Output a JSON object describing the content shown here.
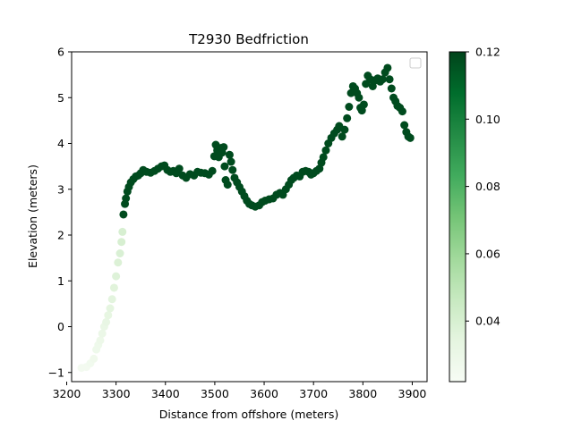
{
  "chart_data": {
    "type": "scatter",
    "title": "T2930 Bedfriction",
    "xlabel": "Distance from offshore (meters)",
    "ylabel": "Elevation (meters)",
    "xlim": [
      3210,
      3930
    ],
    "ylim": [
      -1.2,
      6.0
    ],
    "xticks": [
      3200,
      3300,
      3400,
      3500,
      3600,
      3700,
      3800,
      3900
    ],
    "yticks": [
      -1,
      0,
      1,
      2,
      3,
      4,
      5,
      6
    ],
    "grid": false,
    "legend": {
      "placement": "top-right",
      "entries": []
    },
    "colorbar": {
      "colormap": "Greens",
      "range": [
        0.022,
        0.12
      ],
      "ticks": [
        0.04,
        0.06,
        0.08,
        0.1,
        0.12
      ],
      "tick_labels": [
        "0.04",
        "0.06",
        "0.08",
        "0.10",
        "0.12"
      ],
      "low_color": "#f7fcf5",
      "high_color": "#00441b"
    },
    "series": [
      {
        "points": [
          [
            3230,
            -0.9,
            0.025
          ],
          [
            3240,
            -0.88,
            0.025
          ],
          [
            3248,
            -0.8,
            0.026
          ],
          [
            3255,
            -0.7,
            0.027
          ],
          [
            3260,
            -0.5,
            0.028
          ],
          [
            3264,
            -0.4,
            0.028
          ],
          [
            3268,
            -0.3,
            0.029
          ],
          [
            3272,
            -0.15,
            0.03
          ],
          [
            3276,
            0.0,
            0.031
          ],
          [
            3280,
            0.1,
            0.032
          ],
          [
            3284,
            0.25,
            0.033
          ],
          [
            3288,
            0.4,
            0.034
          ],
          [
            3292,
            0.6,
            0.035
          ],
          [
            3296,
            0.85,
            0.036
          ],
          [
            3300,
            1.1,
            0.037
          ],
          [
            3304,
            1.4,
            0.038
          ],
          [
            3308,
            1.6,
            0.039
          ],
          [
            3311,
            1.85,
            0.04
          ],
          [
            3313,
            2.07,
            0.04
          ],
          [
            3315,
            2.45,
            0.118
          ],
          [
            3318,
            2.68,
            0.118
          ],
          [
            3320,
            2.8,
            0.118
          ],
          [
            3323,
            2.95,
            0.118
          ],
          [
            3326,
            3.05,
            0.118
          ],
          [
            3330,
            3.15,
            0.118
          ],
          [
            3335,
            3.22,
            0.118
          ],
          [
            3340,
            3.28,
            0.118
          ],
          [
            3345,
            3.3,
            0.118
          ],
          [
            3350,
            3.35,
            0.118
          ],
          [
            3355,
            3.42,
            0.118
          ],
          [
            3362,
            3.38,
            0.118
          ],
          [
            3370,
            3.36,
            0.118
          ],
          [
            3378,
            3.4,
            0.118
          ],
          [
            3385,
            3.45,
            0.118
          ],
          [
            3392,
            3.5,
            0.118
          ],
          [
            3398,
            3.52,
            0.118
          ],
          [
            3404,
            3.42,
            0.118
          ],
          [
            3410,
            3.38,
            0.118
          ],
          [
            3416,
            3.4,
            0.118
          ],
          [
            3422,
            3.35,
            0.118
          ],
          [
            3428,
            3.45,
            0.118
          ],
          [
            3435,
            3.3,
            0.118
          ],
          [
            3442,
            3.25,
            0.118
          ],
          [
            3450,
            3.33,
            0.118
          ],
          [
            3458,
            3.3,
            0.118
          ],
          [
            3465,
            3.38,
            0.118
          ],
          [
            3472,
            3.36,
            0.118
          ],
          [
            3480,
            3.35,
            0.118
          ],
          [
            3488,
            3.32,
            0.118
          ],
          [
            3495,
            3.4,
            0.118
          ],
          [
            3499,
            3.72,
            0.118
          ],
          [
            3502,
            3.97,
            0.118
          ],
          [
            3505,
            3.85,
            0.118
          ],
          [
            3508,
            3.7,
            0.118
          ],
          [
            3512,
            3.9,
            0.118
          ],
          [
            3515,
            3.8,
            0.118
          ],
          [
            3518,
            3.92,
            0.118
          ],
          [
            3520,
            3.5,
            0.118
          ],
          [
            3522,
            3.2,
            0.118
          ],
          [
            3526,
            3.1,
            0.118
          ],
          [
            3530,
            3.75,
            0.118
          ],
          [
            3533,
            3.6,
            0.118
          ],
          [
            3536,
            3.42,
            0.118
          ],
          [
            3540,
            3.25,
            0.118
          ],
          [
            3545,
            3.15,
            0.118
          ],
          [
            3550,
            3.05,
            0.118
          ],
          [
            3555,
            2.95,
            0.118
          ],
          [
            3560,
            2.85,
            0.118
          ],
          [
            3565,
            2.75,
            0.118
          ],
          [
            3570,
            2.68,
            0.118
          ],
          [
            3575,
            2.65,
            0.118
          ],
          [
            3582,
            2.62,
            0.118
          ],
          [
            3590,
            2.65,
            0.118
          ],
          [
            3596,
            2.72,
            0.118
          ],
          [
            3602,
            2.75,
            0.118
          ],
          [
            3610,
            2.78,
            0.118
          ],
          [
            3618,
            2.8,
            0.118
          ],
          [
            3625,
            2.88,
            0.118
          ],
          [
            3632,
            2.92,
            0.118
          ],
          [
            3638,
            2.88,
            0.118
          ],
          [
            3644,
            3.0,
            0.118
          ],
          [
            3650,
            3.1,
            0.118
          ],
          [
            3655,
            3.2,
            0.118
          ],
          [
            3660,
            3.25,
            0.118
          ],
          [
            3666,
            3.3,
            0.118
          ],
          [
            3672,
            3.28,
            0.118
          ],
          [
            3678,
            3.38,
            0.118
          ],
          [
            3684,
            3.4,
            0.118
          ],
          [
            3690,
            3.38,
            0.118
          ],
          [
            3695,
            3.32,
            0.118
          ],
          [
            3700,
            3.35,
            0.118
          ],
          [
            3706,
            3.4,
            0.118
          ],
          [
            3712,
            3.45,
            0.118
          ],
          [
            3716,
            3.58,
            0.118
          ],
          [
            3720,
            3.7,
            0.118
          ],
          [
            3725,
            3.85,
            0.118
          ],
          [
            3730,
            4.0,
            0.118
          ],
          [
            3736,
            4.12,
            0.118
          ],
          [
            3742,
            4.22,
            0.118
          ],
          [
            3748,
            4.3,
            0.118
          ],
          [
            3752,
            4.38,
            0.118
          ],
          [
            3758,
            4.15,
            0.118
          ],
          [
            3763,
            4.3,
            0.118
          ],
          [
            3768,
            4.55,
            0.118
          ],
          [
            3772,
            4.8,
            0.118
          ],
          [
            3776,
            5.1,
            0.118
          ],
          [
            3780,
            5.25,
            0.118
          ],
          [
            3784,
            5.2,
            0.118
          ],
          [
            3788,
            5.1,
            0.118
          ],
          [
            3792,
            5.0,
            0.118
          ],
          [
            3795,
            4.78,
            0.118
          ],
          [
            3798,
            4.72,
            0.118
          ],
          [
            3802,
            4.85,
            0.118
          ],
          [
            3806,
            5.3,
            0.118
          ],
          [
            3810,
            5.48,
            0.118
          ],
          [
            3815,
            5.4,
            0.118
          ],
          [
            3820,
            5.25,
            0.118
          ],
          [
            3825,
            5.38,
            0.118
          ],
          [
            3830,
            5.42,
            0.118
          ],
          [
            3835,
            5.35,
            0.118
          ],
          [
            3840,
            5.4,
            0.118
          ],
          [
            3845,
            5.55,
            0.118
          ],
          [
            3850,
            5.65,
            0.118
          ],
          [
            3854,
            5.4,
            0.118
          ],
          [
            3858,
            5.2,
            0.118
          ],
          [
            3862,
            5.0,
            0.118
          ],
          [
            3866,
            4.92,
            0.118
          ],
          [
            3870,
            4.82,
            0.118
          ],
          [
            3875,
            4.78,
            0.118
          ],
          [
            3880,
            4.7,
            0.118
          ],
          [
            3884,
            4.4,
            0.118
          ],
          [
            3888,
            4.25,
            0.118
          ],
          [
            3892,
            4.15,
            0.118
          ],
          [
            3896,
            4.12,
            0.118
          ]
        ]
      }
    ]
  }
}
